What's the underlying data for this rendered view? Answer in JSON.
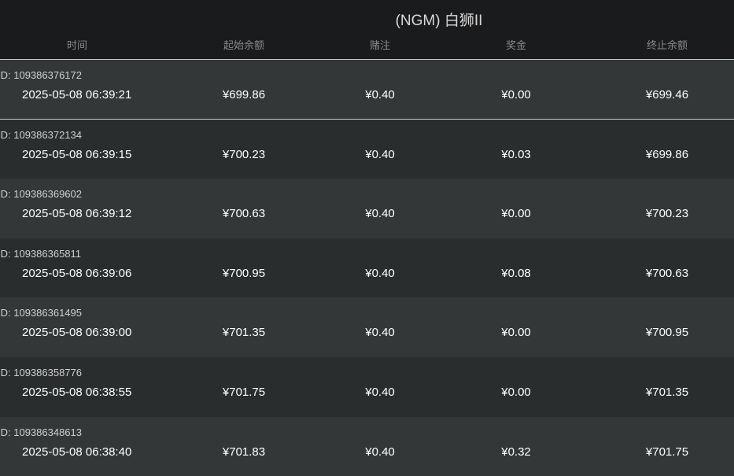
{
  "title": "(NGM) 白狮II",
  "columns": [
    "时间",
    "起始余额",
    "赌注",
    "奖金",
    "终止余额"
  ],
  "id_prefix": "ID: ",
  "rows": [
    {
      "id": "109386376172",
      "time": "2025-05-08 06:39:21",
      "start": "¥699.86",
      "bet": "¥0.40",
      "win": "¥0.00",
      "end": "¥699.46"
    },
    {
      "id": "109386372134",
      "time": "2025-05-08 06:39:15",
      "start": "¥700.23",
      "bet": "¥0.40",
      "win": "¥0.03",
      "end": "¥699.86"
    },
    {
      "id": "109386369602",
      "time": "2025-05-08 06:39:12",
      "start": "¥700.63",
      "bet": "¥0.40",
      "win": "¥0.00",
      "end": "¥700.23"
    },
    {
      "id": "109386365811",
      "time": "2025-05-08 06:39:06",
      "start": "¥700.95",
      "bet": "¥0.40",
      "win": "¥0.08",
      "end": "¥700.63"
    },
    {
      "id": "109386361495",
      "time": "2025-05-08 06:39:00",
      "start": "¥701.35",
      "bet": "¥0.40",
      "win": "¥0.00",
      "end": "¥700.95"
    },
    {
      "id": "109386358776",
      "time": "2025-05-08 06:38:55",
      "start": "¥701.75",
      "bet": "¥0.40",
      "win": "¥0.00",
      "end": "¥701.35"
    },
    {
      "id": "109386348613",
      "time": "2025-05-08 06:38:40",
      "start": "¥701.83",
      "bet": "¥0.40",
      "win": "¥0.32",
      "end": "¥701.75"
    }
  ]
}
